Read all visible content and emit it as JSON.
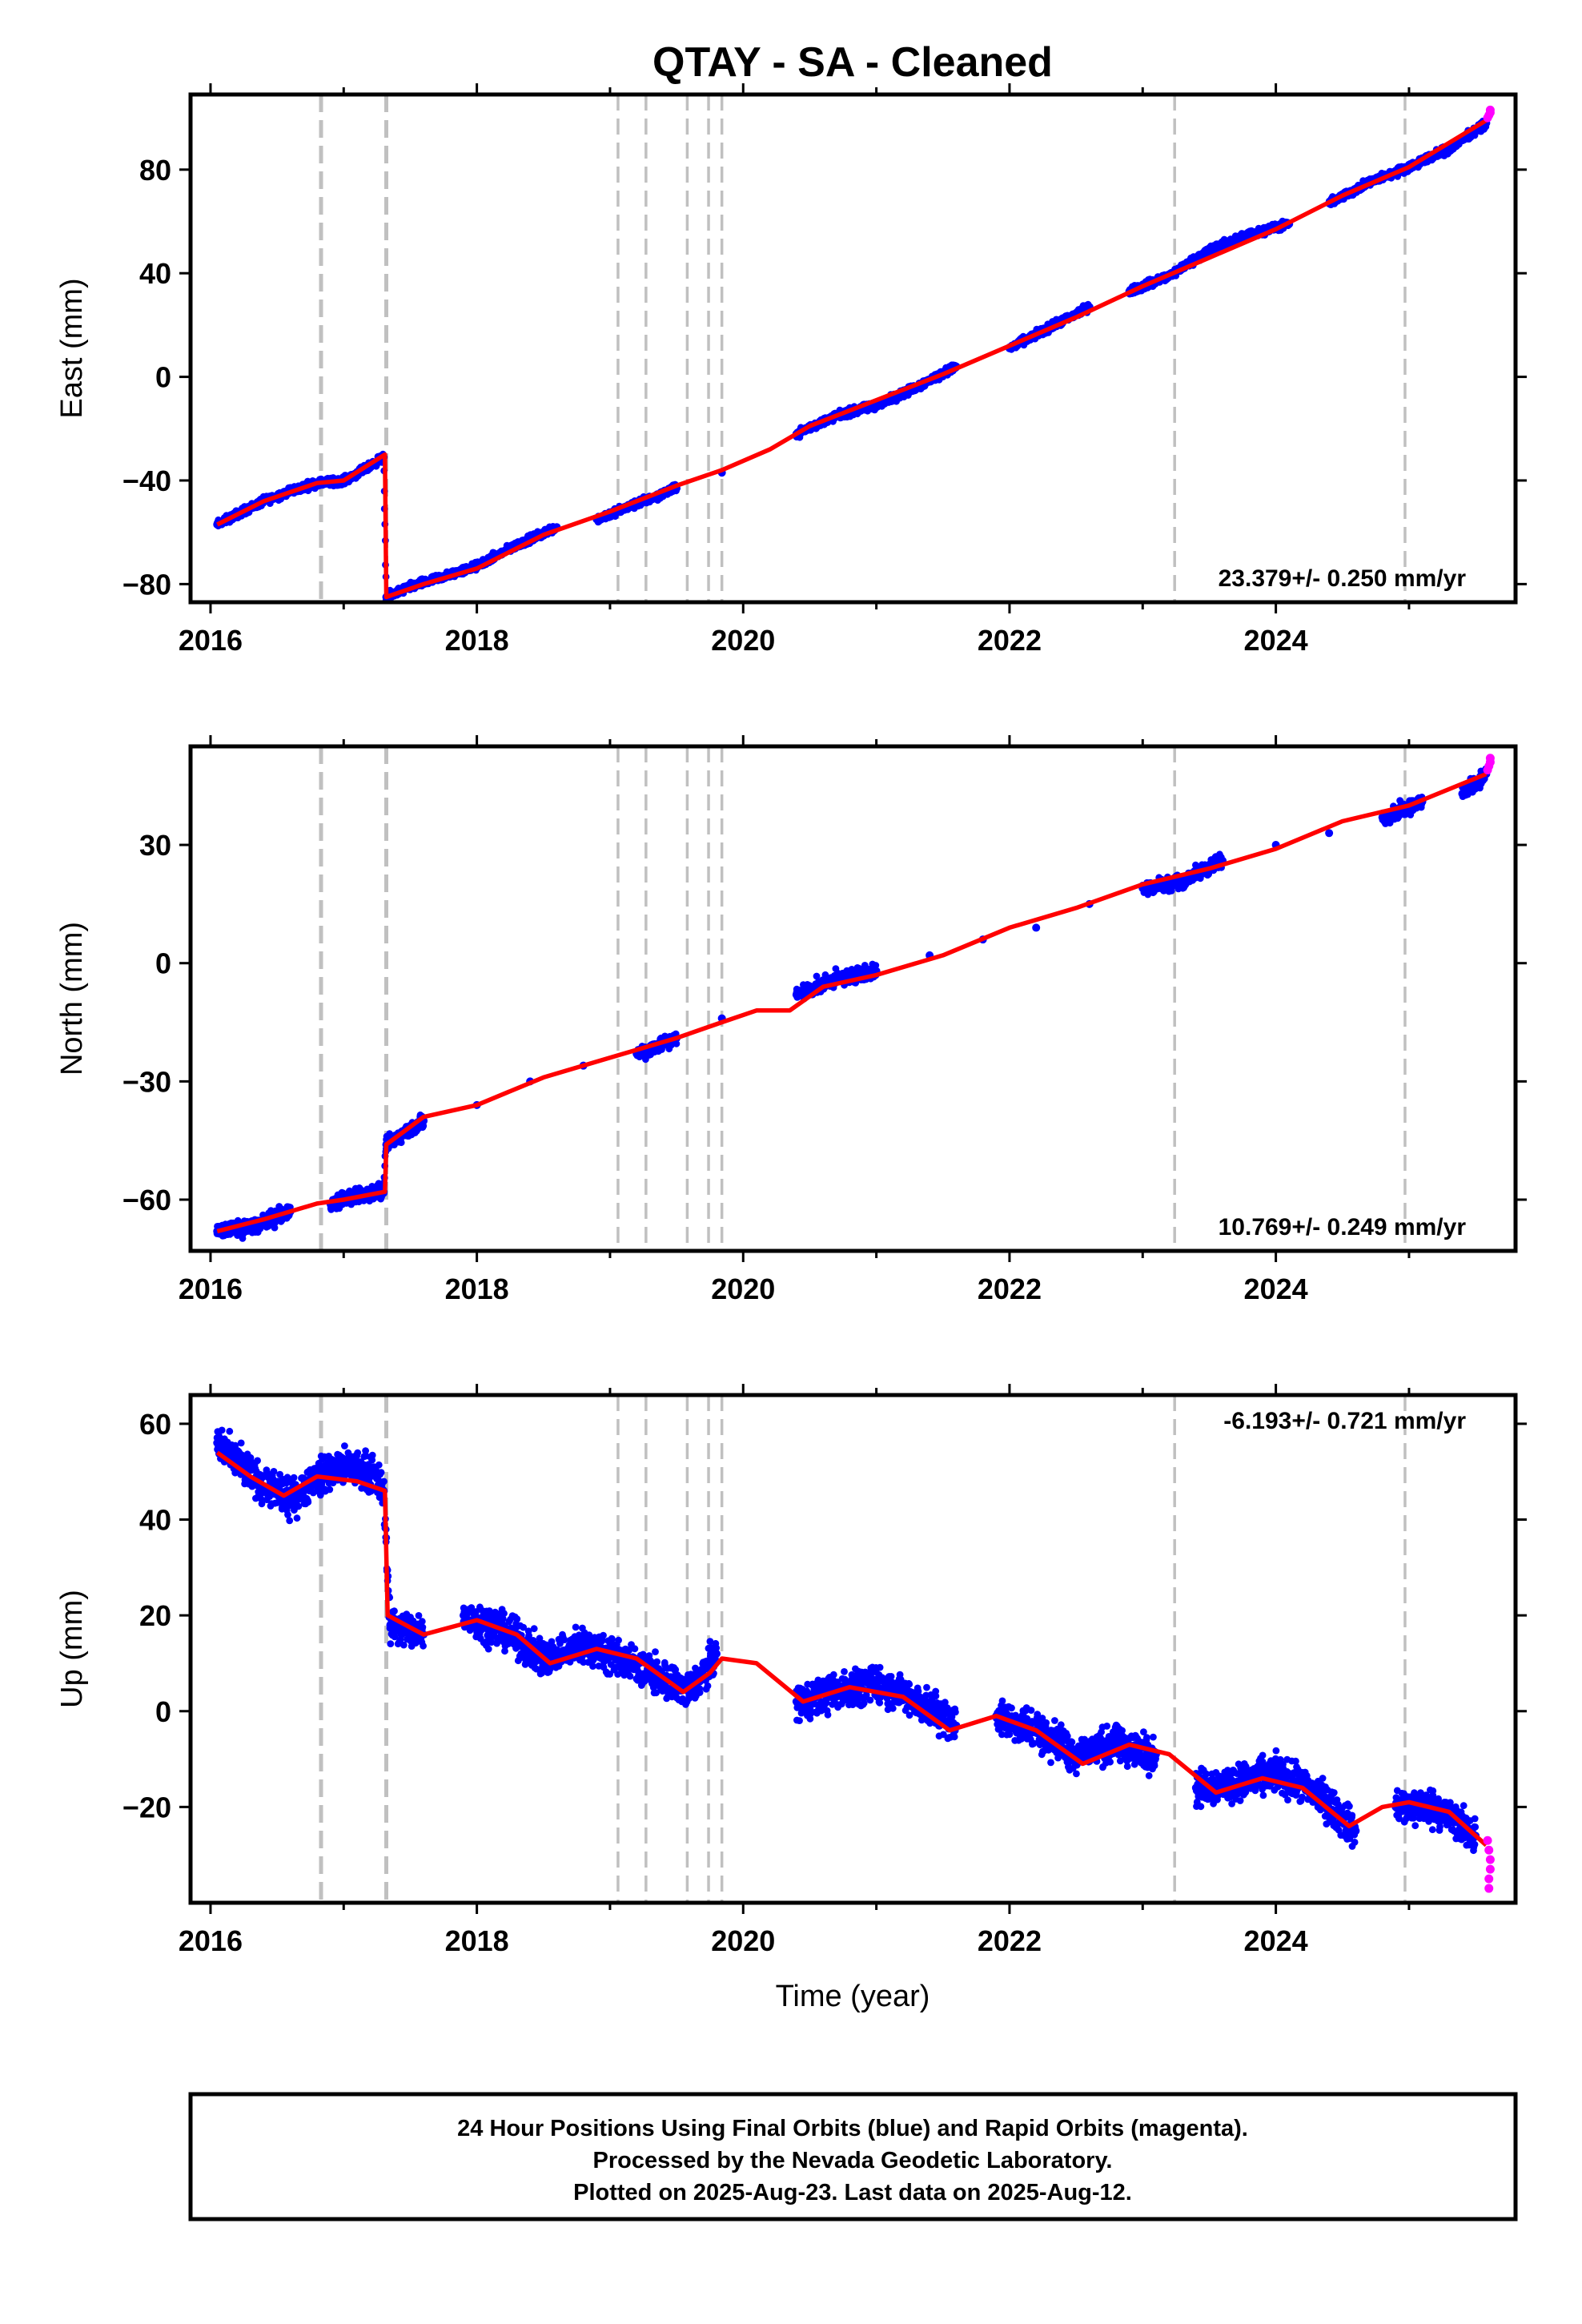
{
  "title": "QTAY  - SA - Cleaned",
  "xlabel": "Time (year)",
  "footer": {
    "line1": "24 Hour Positions Using Final Orbits (blue) and Rapid Orbits (magenta).",
    "line2": "Processed by the Nevada Geodetic Laboratory.",
    "line3": "Plotted on 2025-Aug-23. Last data on 2025-Aug-12."
  },
  "colors": {
    "final_orbits": "#0000ff",
    "rapid_orbits": "#ff00ff",
    "model": "#ff0000",
    "events": "#c0c0c0"
  },
  "chart_data": [
    {
      "type": "scatter",
      "name": "east",
      "ylabel": "East (mm)",
      "xlim": [
        2015.85,
        2025.8
      ],
      "ylim": [
        -87,
        109
      ],
      "xticks": [
        2016,
        2018,
        2020,
        2022,
        2024
      ],
      "yticks": [
        -80,
        -40,
        0,
        40,
        80
      ],
      "rate": "23.379+/- 0.250 mm/yr",
      "rate_position": "bottom-right",
      "offset_events": [
        2016.83,
        2017.32
      ],
      "equipment_events": [
        2019.06,
        2019.27,
        2019.58,
        2019.74,
        2019.84,
        2023.24,
        2024.97
      ],
      "series": [
        {
          "name": "Final Orbits",
          "color": "#0000ff",
          "x": [
            2016.05,
            2016.2,
            2016.4,
            2016.6,
            2016.8,
            2017.0,
            2017.15,
            2017.3,
            2017.32,
            2017.5,
            2017.7,
            2018.0,
            2018.3,
            2018.6,
            2018.9,
            2019.2,
            2019.5,
            2019.84,
            2020.4,
            2020.7,
            2021.0,
            2021.3,
            2021.6,
            2022.0,
            2022.3,
            2022.6,
            2022.9,
            2023.2,
            2023.5,
            2023.8,
            2024.1,
            2024.4,
            2024.7,
            2025.0,
            2025.3,
            2025.58
          ],
          "y": [
            -57,
            -53,
            -48,
            -44,
            -41,
            -40,
            -36,
            -31,
            -85,
            -81,
            -78,
            -73,
            -65,
            -58,
            -55,
            -49,
            -43,
            -37,
            -22,
            -15,
            -11,
            -4,
            4,
            11,
            19,
            27,
            33,
            39,
            49,
            55,
            59,
            67,
            75,
            81,
            88,
            98
          ]
        },
        {
          "name": "Rapid Orbits",
          "color": "#ff00ff",
          "x": [
            2025.59,
            2025.6,
            2025.61,
            2025.61
          ],
          "y": [
            100,
            101,
            102,
            103
          ]
        },
        {
          "name": "Model",
          "color": "#ff0000",
          "kind": "line",
          "x": [
            2016.05,
            2016.4,
            2016.8,
            2017.0,
            2017.31,
            2017.32,
            2017.6,
            2018.0,
            2018.5,
            2019.0,
            2019.5,
            2019.84,
            2020.2,
            2020.5,
            2021.0,
            2021.5,
            2022.0,
            2022.5,
            2023.0,
            2023.5,
            2024.0,
            2024.5,
            2025.0,
            2025.58
          ],
          "y": [
            -57,
            -48,
            -41,
            -40,
            -30,
            -85,
            -80,
            -74,
            -61,
            -52,
            -42,
            -36,
            -28,
            -19,
            -9,
            1,
            12,
            23,
            35,
            46,
            57,
            70,
            81,
            99
          ]
        }
      ]
    },
    {
      "type": "scatter",
      "name": "north",
      "ylabel": "North (mm)",
      "xlim": [
        2015.85,
        2025.8
      ],
      "ylim": [
        -73,
        55
      ],
      "xticks": [
        2016,
        2018,
        2020,
        2022,
        2024
      ],
      "yticks": [
        -60,
        -30,
        0,
        30
      ],
      "rate": "10.769+/- 0.249 mm/yr",
      "rate_position": "bottom-right",
      "offset_events": [
        2016.83,
        2017.32
      ],
      "equipment_events": [
        2019.06,
        2019.27,
        2019.58,
        2019.74,
        2019.84,
        2023.24,
        2024.97
      ],
      "series": [
        {
          "name": "Final Orbits",
          "color": "#0000ff",
          "x": [
            2016.05,
            2016.3,
            2016.6,
            2016.9,
            2017.1,
            2017.3,
            2017.32,
            2017.6,
            2018.0,
            2018.4,
            2018.8,
            2019.2,
            2019.5,
            2019.84,
            2020.4,
            2020.7,
            2021.0,
            2021.4,
            2021.8,
            2022.2,
            2022.6,
            2023.0,
            2023.3,
            2023.6,
            2024.0,
            2024.4,
            2024.8,
            2025.1,
            2025.4,
            2025.58
          ],
          "y": [
            -68,
            -67,
            -63,
            -61,
            -59,
            -58,
            -46,
            -40,
            -36,
            -30,
            -26,
            -23,
            -19,
            -14,
            -8,
            -4,
            -2,
            2,
            6,
            9,
            15,
            19,
            21,
            26,
            30,
            33,
            37,
            41,
            43,
            48
          ]
        },
        {
          "name": "Rapid Orbits",
          "color": "#ff00ff",
          "x": [
            2025.59,
            2025.6,
            2025.61,
            2025.61
          ],
          "y": [
            49,
            50,
            51,
            52
          ]
        },
        {
          "name": "Model",
          "color": "#ff0000",
          "kind": "line",
          "x": [
            2016.05,
            2016.4,
            2016.8,
            2017.0,
            2017.31,
            2017.32,
            2017.6,
            2018.0,
            2018.5,
            2019.0,
            2019.5,
            2019.84,
            2020.1,
            2020.35,
            2020.6,
            2021.0,
            2021.5,
            2022.0,
            2022.5,
            2023.0,
            2023.5,
            2024.0,
            2024.5,
            2025.0,
            2025.58
          ],
          "y": [
            -68,
            -65,
            -61,
            -60,
            -58,
            -46,
            -39,
            -36,
            -29,
            -24,
            -19,
            -15,
            -12,
            -12,
            -6,
            -3,
            2,
            9,
            14,
            20,
            24,
            29,
            36,
            40,
            48
          ]
        }
      ]
    },
    {
      "type": "scatter",
      "name": "up",
      "ylabel": "Up (mm)",
      "xlim": [
        2015.85,
        2025.8
      ],
      "ylim": [
        -40,
        66
      ],
      "xticks": [
        2016,
        2018,
        2020,
        2022,
        2024
      ],
      "yticks": [
        -20,
        0,
        20,
        40,
        60
      ],
      "rate": "-6.193+/- 0.721 mm/yr",
      "rate_position": "top-right",
      "offset_events": [
        2016.83,
        2017.32
      ],
      "equipment_events": [
        2019.06,
        2019.27,
        2019.58,
        2019.74,
        2019.84,
        2023.24,
        2024.97
      ],
      "series": [
        {
          "name": "Final Orbits",
          "color": "#0000ff",
          "x": [
            2016.05,
            2016.2,
            2016.4,
            2016.6,
            2016.8,
            2017.0,
            2017.2,
            2017.3,
            2017.35,
            2017.6,
            2017.9,
            2018.2,
            2018.5,
            2018.8,
            2019.0,
            2019.3,
            2019.6,
            2019.8,
            2020.4,
            2020.7,
            2021.0,
            2021.3,
            2021.6,
            2021.9,
            2022.2,
            2022.5,
            2022.8,
            2023.1,
            2023.4,
            2023.7,
            2024.0,
            2024.3,
            2024.6,
            2024.9,
            2025.2,
            2025.5
          ],
          "y": [
            56,
            52,
            47,
            44,
            49,
            51,
            50,
            46,
            18,
            16,
            20,
            17,
            11,
            14,
            12,
            8,
            4,
            12,
            2,
            4,
            6,
            2,
            -3,
            -1,
            -4,
            -9,
            -7,
            -9,
            -16,
            -15,
            -13,
            -17,
            -25,
            -20,
            -20,
            -26
          ]
        },
        {
          "name": "Rapid Orbits",
          "color": "#ff00ff",
          "x": [
            2025.59,
            2025.6,
            2025.61,
            2025.61,
            2025.6,
            2025.6
          ],
          "y": [
            -27,
            -29,
            -31,
            -33,
            -35,
            -37
          ]
        },
        {
          "name": "Model",
          "color": "#ff0000",
          "kind": "line",
          "x": [
            2016.05,
            2016.3,
            2016.55,
            2016.8,
            2017.1,
            2017.31,
            2017.33,
            2017.6,
            2018.0,
            2018.3,
            2018.55,
            2018.9,
            2019.2,
            2019.55,
            2019.75,
            2019.84,
            2020.1,
            2020.45,
            2020.8,
            2021.2,
            2021.55,
            2021.9,
            2022.2,
            2022.55,
            2022.9,
            2023.2,
            2023.55,
            2023.9,
            2024.2,
            2024.55,
            2024.8,
            2025.0,
            2025.3,
            2025.58
          ],
          "y": [
            54,
            49,
            45,
            49,
            48,
            46,
            20,
            16,
            19,
            16,
            10,
            13,
            11,
            4,
            8,
            11,
            10,
            2,
            5,
            3,
            -4,
            -1,
            -4,
            -11,
            -7,
            -9,
            -17,
            -14,
            -16,
            -24,
            -20,
            -19,
            -21,
            -28
          ]
        }
      ]
    }
  ]
}
